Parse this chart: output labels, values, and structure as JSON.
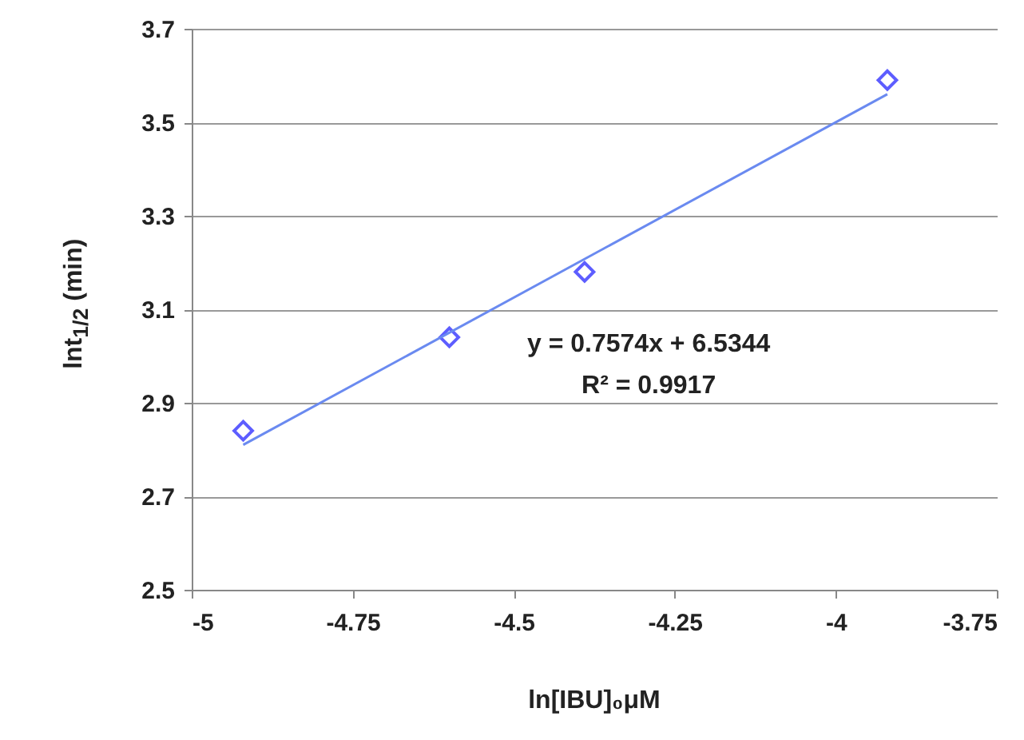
{
  "chart_data": {
    "type": "scatter",
    "xlabel": "ln[IBU]₀μM",
    "ylabel": "lnt$_{1/2}$ (min)",
    "xlim": [
      -5,
      -3.75
    ],
    "xticks": [
      -5,
      -4.75,
      -4.5,
      -4.25,
      -4,
      -3.75
    ],
    "ylim": [
      2.5,
      3.7
    ],
    "yticks": [
      2.5,
      2.7,
      2.9,
      3.1,
      3.3,
      3.5,
      3.7
    ],
    "grid": "y",
    "series": [
      {
        "marker": "diamond",
        "color": "#1a1aff",
        "x": [
          -4.92,
          -4.6,
          -4.39,
          -3.92
        ],
        "values": [
          2.84,
          3.04,
          3.18,
          3.59
        ]
      },
      {
        "type": "line",
        "color": "#6a8af0",
        "x": [
          -4.92,
          -3.92
        ],
        "values": [
          2.81,
          3.56
        ]
      }
    ],
    "annotations": [
      "y = 0.7574x + 6.5344",
      "R² = 0.9917"
    ]
  }
}
